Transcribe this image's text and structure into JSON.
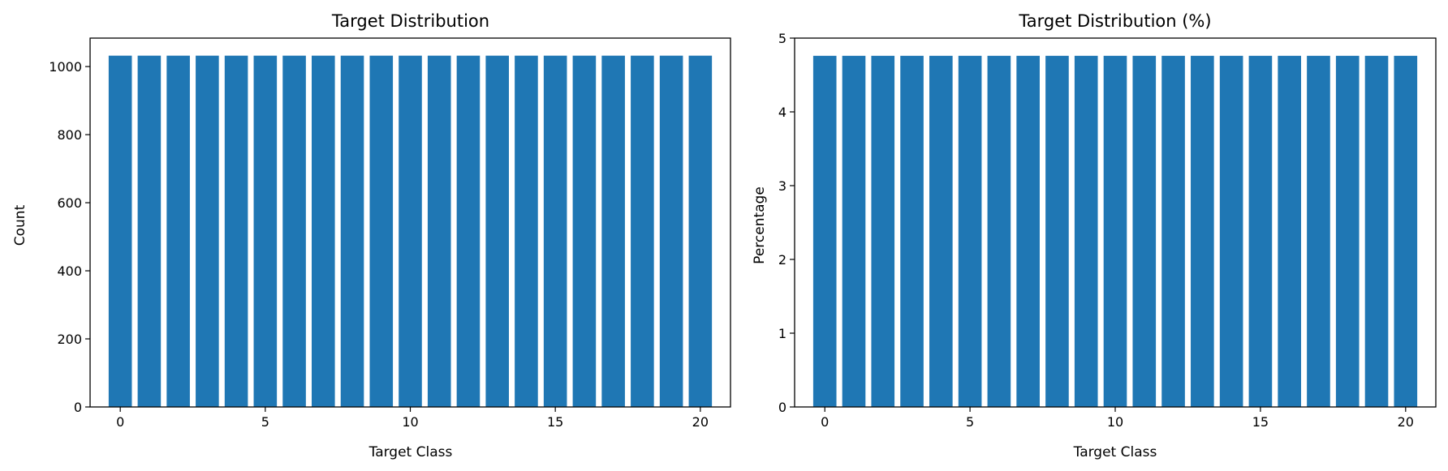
{
  "chart_data": [
    {
      "type": "bar",
      "title": "Target Distribution",
      "xlabel": "Target Class",
      "ylabel": "Count",
      "x": [
        0,
        1,
        2,
        3,
        4,
        5,
        6,
        7,
        8,
        9,
        10,
        11,
        12,
        13,
        14,
        15,
        16,
        17,
        18,
        19,
        20
      ],
      "values": [
        1032,
        1032,
        1032,
        1032,
        1032,
        1032,
        1032,
        1032,
        1032,
        1032,
        1032,
        1032,
        1032,
        1032,
        1032,
        1032,
        1032,
        1032,
        1032,
        1032,
        1032
      ],
      "xlim": [
        -1.04,
        21.04
      ],
      "ylim": [
        0,
        1083.6
      ],
      "xticks": [
        0,
        5,
        10,
        15,
        20
      ],
      "yticks": [
        0,
        200,
        400,
        600,
        800,
        1000
      ],
      "bar_color": "#1f77b4",
      "grid": false
    },
    {
      "type": "bar",
      "title": "Target Distribution (%)",
      "xlabel": "Target Class",
      "ylabel": "Percentage",
      "x": [
        0,
        1,
        2,
        3,
        4,
        5,
        6,
        7,
        8,
        9,
        10,
        11,
        12,
        13,
        14,
        15,
        16,
        17,
        18,
        19,
        20
      ],
      "values": [
        4.76,
        4.76,
        4.76,
        4.76,
        4.76,
        4.76,
        4.76,
        4.76,
        4.76,
        4.76,
        4.76,
        4.76,
        4.76,
        4.76,
        4.76,
        4.76,
        4.76,
        4.76,
        4.76,
        4.76,
        4.76
      ],
      "xlim": [
        -1.04,
        21.04
      ],
      "ylim": [
        0,
        5
      ],
      "xticks": [
        0,
        5,
        10,
        15,
        20
      ],
      "yticks": [
        0,
        1,
        2,
        3,
        4,
        5
      ],
      "bar_color": "#1f77b4",
      "grid": false
    }
  ]
}
